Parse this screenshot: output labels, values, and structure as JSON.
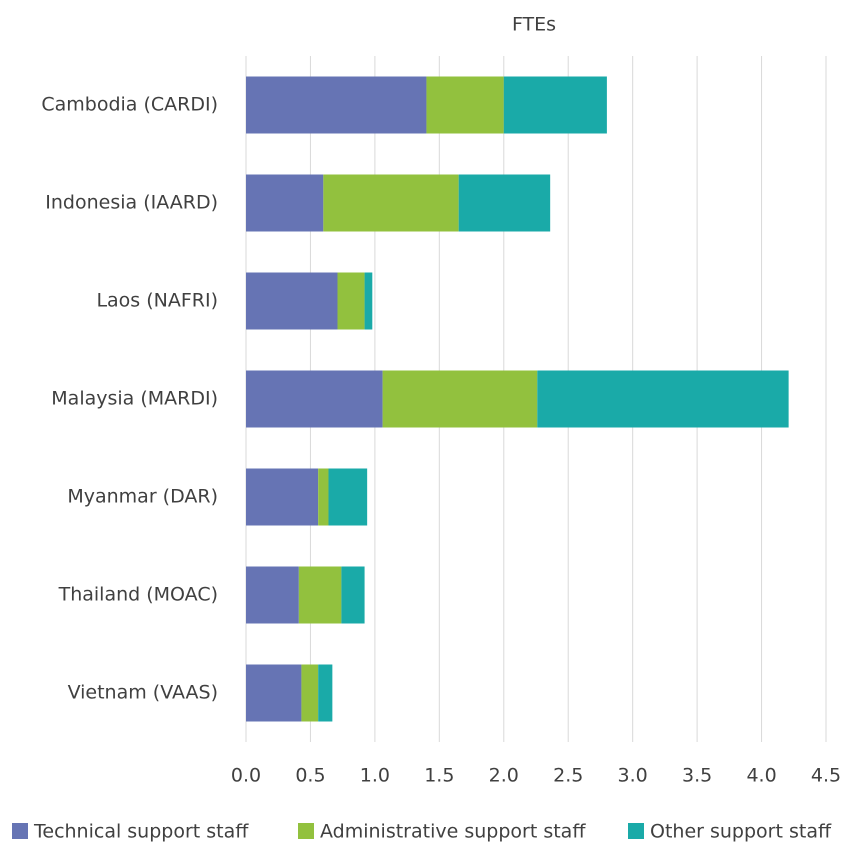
{
  "chart_data": {
    "type": "bar",
    "orientation": "horizontal",
    "stacked": true,
    "title": "FTEs",
    "categories": [
      "Cambodia (CARDI)",
      "Indonesia (IAARD)",
      "Laos (NAFRI)",
      "Malaysia (MARDI)",
      "Myanmar (DAR)",
      "Thailand (MOAC)",
      "Vietnam (VAAS)"
    ],
    "series": [
      {
        "name": "Technical support staff",
        "color": "#6674b4",
        "values": [
          1.4,
          0.6,
          0.71,
          1.06,
          0.56,
          0.41,
          0.43
        ]
      },
      {
        "name": "Administrative support staff",
        "color": "#92c13e",
        "values": [
          0.6,
          1.05,
          0.21,
          1.2,
          0.08,
          0.33,
          0.13
        ]
      },
      {
        "name": "Other support staff",
        "color": "#1aaaa8",
        "values": [
          0.8,
          0.71,
          0.06,
          1.95,
          0.3,
          0.18,
          0.11
        ]
      }
    ],
    "xlim": [
      0,
      4.5
    ],
    "xticks": [
      {
        "value": 0,
        "label": "0.0"
      },
      0.5,
      {
        "value": 1,
        "label": "1.0"
      },
      1.5,
      {
        "value": 2,
        "label": "2.0"
      },
      2.5,
      {
        "value": 3,
        "label": "3.0"
      },
      3.5,
      {
        "value": 4,
        "label": "4.0"
      },
      4.5
    ],
    "grid": true,
    "legend": "bottom"
  }
}
